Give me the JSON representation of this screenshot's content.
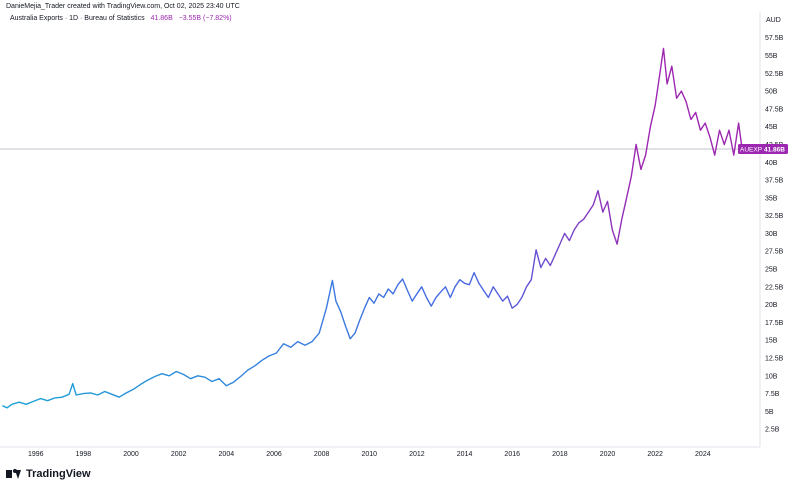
{
  "caption": "DanieMejia_Trader created with TradingView.com, Oct 02, 2025 23:40 UTC",
  "legend": {
    "series_title": "Australia Exports · 1D · Bureau of Statistics",
    "last_value": "41.86B",
    "change": "−3.55B (−7.82%)"
  },
  "currency_label": "AUD",
  "price_tag": {
    "symbol": "AUEXP",
    "value": "41.86B"
  },
  "brand": "TradingView",
  "colors": {
    "series_start": "#1aa3d6",
    "series_mid": "#4a67e4",
    "series_end": "#9c27b0",
    "tag_bg": "#9c27b0",
    "last_line": "#b0b3bd"
  },
  "chart_data": {
    "type": "line",
    "title": "",
    "xlabel": "",
    "ylabel": "",
    "xlim": [
      1994.5,
      2026.4
    ],
    "ylim": [
      0,
      59
    ],
    "grid": false,
    "x_ticks": [
      {
        "value": 1996,
        "label": "1996"
      },
      {
        "value": 1998,
        "label": "1998"
      },
      {
        "value": 2000,
        "label": "2000"
      },
      {
        "value": 2002,
        "label": "2002"
      },
      {
        "value": 2004,
        "label": "2004"
      },
      {
        "value": 2006,
        "label": "2006"
      },
      {
        "value": 2008,
        "label": "2008"
      },
      {
        "value": 2010,
        "label": "2010"
      },
      {
        "value": 2012,
        "label": "2012"
      },
      {
        "value": 2014,
        "label": "2014"
      },
      {
        "value": 2016,
        "label": "2016"
      },
      {
        "value": 2018,
        "label": "2018"
      },
      {
        "value": 2020,
        "label": "2020"
      },
      {
        "value": 2022,
        "label": "2022"
      },
      {
        "value": 2024,
        "label": "2024"
      }
    ],
    "y_ticks": [
      {
        "value": 2.5,
        "label": "2.5B"
      },
      {
        "value": 5,
        "label": "5B"
      },
      {
        "value": 7.5,
        "label": "7.5B"
      },
      {
        "value": 10,
        "label": "10B"
      },
      {
        "value": 12.5,
        "label": "12.5B"
      },
      {
        "value": 15,
        "label": "15B"
      },
      {
        "value": 17.5,
        "label": "17.5B"
      },
      {
        "value": 20,
        "label": "20B"
      },
      {
        "value": 22.5,
        "label": "22.5B"
      },
      {
        "value": 25,
        "label": "25B"
      },
      {
        "value": 27.5,
        "label": "27.5B"
      },
      {
        "value": 30,
        "label": "30B"
      },
      {
        "value": 32.5,
        "label": "32.5B"
      },
      {
        "value": 35,
        "label": "35B"
      },
      {
        "value": 37.5,
        "label": "37.5B"
      },
      {
        "value": 40,
        "label": "40B"
      },
      {
        "value": 42.5,
        "label": "42.5B"
      },
      {
        "value": 45,
        "label": "45B"
      },
      {
        "value": 47.5,
        "label": "47.5B"
      },
      {
        "value": 50,
        "label": "50B"
      },
      {
        "value": 52.5,
        "label": "52.5B"
      },
      {
        "value": 55,
        "label": "55B"
      },
      {
        "value": 57.5,
        "label": "57.5B"
      }
    ],
    "last_value": 41.86,
    "series": [
      {
        "x": [
          1994.6,
          1994.8,
          1995,
          1995.3,
          1995.6,
          1995.9,
          1996.2,
          1996.5,
          1996.8,
          1997.1,
          1997.4,
          1997.55,
          1997.7,
          1998,
          1998.3,
          1998.6,
          1998.9,
          1999.2,
          1999.5,
          1999.8,
          2000.1,
          2000.4,
          2000.7,
          2001,
          2001.3,
          2001.6,
          2001.9,
          2002.2,
          2002.5,
          2002.8,
          2003.1,
          2003.4,
          2003.7,
          2004,
          2004.3,
          2004.6,
          2004.9,
          2005.2,
          2005.5,
          2005.8,
          2006.1,
          2006.4,
          2006.7,
          2007,
          2007.3,
          2007.6,
          2007.9,
          2008.2,
          2008.45,
          2008.6,
          2008.8,
          2009,
          2009.2,
          2009.4,
          2009.6,
          2009.8,
          2010,
          2010.2,
          2010.4,
          2010.6,
          2010.8,
          2011,
          2011.2,
          2011.4,
          2011.6,
          2011.8,
          2012,
          2012.2,
          2012.4,
          2012.6,
          2012.8,
          2013,
          2013.2,
          2013.4,
          2013.6,
          2013.8,
          2014,
          2014.2,
          2014.4,
          2014.6,
          2014.8,
          2015,
          2015.2,
          2015.4,
          2015.6,
          2015.8,
          2016,
          2016.2,
          2016.4,
          2016.6,
          2016.8,
          2017,
          2017.2,
          2017.4,
          2017.6,
          2017.8,
          2018,
          2018.2,
          2018.4,
          2018.6,
          2018.8,
          2019,
          2019.2,
          2019.4,
          2019.6,
          2019.8,
          2020,
          2020.2,
          2020.4,
          2020.6,
          2020.8,
          2021,
          2021.2,
          2021.4,
          2021.6,
          2021.8,
          2022,
          2022.2,
          2022.35,
          2022.5,
          2022.7,
          2022.9,
          2023.1,
          2023.3,
          2023.5,
          2023.7,
          2023.9,
          2024.1,
          2024.3,
          2024.5,
          2024.7,
          2024.9,
          2025.1,
          2025.3,
          2025.5,
          2025.65
        ],
        "y": [
          5.8,
          5.5,
          6.0,
          6.3,
          6.0,
          6.4,
          6.8,
          6.5,
          6.9,
          7.0,
          7.4,
          8.9,
          7.3,
          7.5,
          7.6,
          7.3,
          7.8,
          7.4,
          7.0,
          7.6,
          8.1,
          8.8,
          9.4,
          9.9,
          10.3,
          10.0,
          10.6,
          10.2,
          9.6,
          10.0,
          9.8,
          9.2,
          9.6,
          8.6,
          9.1,
          9.9,
          10.8,
          11.4,
          12.2,
          12.8,
          13.2,
          14.5,
          14.0,
          14.8,
          14.3,
          14.8,
          16.0,
          19.5,
          23.4,
          20.5,
          19.0,
          17.0,
          15.2,
          16.0,
          17.8,
          19.5,
          21.0,
          20.2,
          21.5,
          21.0,
          22.2,
          21.5,
          22.8,
          23.6,
          22.0,
          20.5,
          21.5,
          22.5,
          21.0,
          19.8,
          21.0,
          21.8,
          22.5,
          21.0,
          22.5,
          23.5,
          23.0,
          22.8,
          24.5,
          23.0,
          22.0,
          21.0,
          22.5,
          21.5,
          20.5,
          21.2,
          19.5,
          20.0,
          21.0,
          22.5,
          23.5,
          27.7,
          25.2,
          26.5,
          25.5,
          27.0,
          28.5,
          30.0,
          29.0,
          30.5,
          31.5,
          32.0,
          33.0,
          34.0,
          36.0,
          33.0,
          34.5,
          30.5,
          28.5,
          32.0,
          35.0,
          38.0,
          42.5,
          39.0,
          41.0,
          45.0,
          48.0,
          52.5,
          56.0,
          51.0,
          53.5,
          49.0,
          50.0,
          48.5,
          46.0,
          47.0,
          44.5,
          45.5,
          43.5,
          41.0,
          44.5,
          42.5,
          44.5,
          41.0,
          45.5,
          41.86
        ]
      }
    ]
  }
}
